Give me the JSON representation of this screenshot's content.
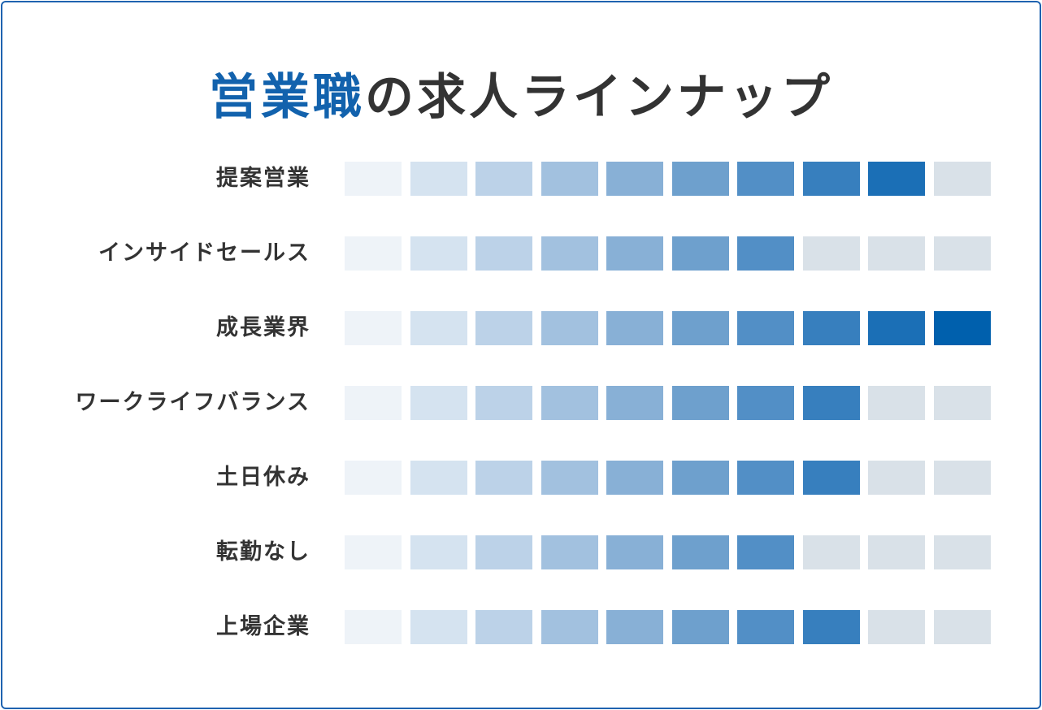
{
  "title": {
    "highlight": "営業職",
    "rest": "の求人ラインナップ"
  },
  "colors": {
    "border": "#1f63b0",
    "title_accent": "#1262ad",
    "text": "#333333",
    "empty_cell": "#d9e1e8",
    "filled_scale": [
      "#eef3f8",
      "#d5e3f0",
      "#bcd2e8",
      "#a2c1df",
      "#88b0d6",
      "#6ea0cd",
      "#528fc6",
      "#377fbe",
      "#1b6fb6",
      "#0060ad"
    ]
  },
  "chart_data": {
    "type": "table",
    "max_level": 10,
    "categories": [
      "提案営業",
      "インサイドセールス",
      "成長業界",
      "ワークライフバランス",
      "土日休み",
      "転勤なし",
      "上場企業"
    ],
    "values": [
      9,
      7,
      10,
      8,
      8,
      7,
      8
    ]
  }
}
